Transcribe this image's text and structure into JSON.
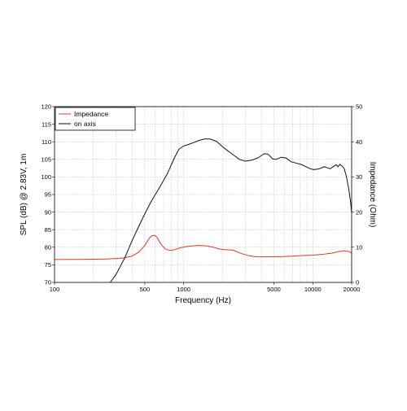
{
  "chart_data": {
    "type": "line",
    "xlabel": "Frequency (Hz)",
    "ylabel": "SPL (dB) @ 2.83V, 1m",
    "y2label": "Impedance (Ohm)",
    "xscale": "log",
    "xlim": [
      100,
      20000
    ],
    "ylim": [
      70,
      120
    ],
    "y2lim": [
      0,
      50
    ],
    "grid": true,
    "legend_position": "top-left",
    "x_ticks": [
      {
        "value": 100,
        "label": "100"
      },
      {
        "value": 500,
        "label": "500"
      },
      {
        "value": 1000,
        "label": "1000"
      },
      {
        "value": 5000,
        "label": "5000"
      },
      {
        "value": 10000,
        "label": "10000"
      },
      {
        "value": 20000,
        "label": "20000"
      }
    ],
    "y_ticks": [
      {
        "value": 70,
        "label": "70"
      },
      {
        "value": 75,
        "label": "75"
      },
      {
        "value": 80,
        "label": "80"
      },
      {
        "value": 85,
        "label": "85"
      },
      {
        "value": 90,
        "label": "90"
      },
      {
        "value": 95,
        "label": "95"
      },
      {
        "value": 100,
        "label": "100"
      },
      {
        "value": 105,
        "label": "105"
      },
      {
        "value": 110,
        "label": "110"
      },
      {
        "value": 115,
        "label": "115"
      },
      {
        "value": 120,
        "label": "120"
      }
    ],
    "y2_ticks": [
      {
        "value": 0,
        "label": "0"
      },
      {
        "value": 10,
        "label": "10"
      },
      {
        "value": 20,
        "label": "20"
      },
      {
        "value": 30,
        "label": "30"
      },
      {
        "value": 40,
        "label": "40"
      },
      {
        "value": 50,
        "label": "50"
      }
    ],
    "series": [
      {
        "name": "Impedance",
        "axis": "right",
        "color": "#d93a2b",
        "points": [
          [
            100,
            6.5
          ],
          [
            150,
            6.55
          ],
          [
            200,
            6.6
          ],
          [
            250,
            6.65
          ],
          [
            300,
            6.8
          ],
          [
            350,
            7.0
          ],
          [
            400,
            7.5
          ],
          [
            450,
            8.6
          ],
          [
            500,
            10.5
          ],
          [
            540,
            12.5
          ],
          [
            570,
            13.3
          ],
          [
            600,
            13.4
          ],
          [
            630,
            12.5
          ],
          [
            670,
            10.8
          ],
          [
            720,
            9.5
          ],
          [
            780,
            9.1
          ],
          [
            850,
            9.3
          ],
          [
            950,
            9.9
          ],
          [
            1100,
            10.3
          ],
          [
            1300,
            10.5
          ],
          [
            1500,
            10.4
          ],
          [
            1700,
            10.0
          ],
          [
            1900,
            9.5
          ],
          [
            2100,
            9.3
          ],
          [
            2400,
            9.2
          ],
          [
            2800,
            8.2
          ],
          [
            3200,
            7.6
          ],
          [
            3600,
            7.3
          ],
          [
            4000,
            7.25
          ],
          [
            5000,
            7.3
          ],
          [
            6000,
            7.35
          ],
          [
            7000,
            7.5
          ],
          [
            8000,
            7.6
          ],
          [
            10000,
            7.75
          ],
          [
            12000,
            8.0
          ],
          [
            14000,
            8.3
          ],
          [
            16000,
            8.8
          ],
          [
            17500,
            9.0
          ],
          [
            19000,
            8.8
          ],
          [
            20000,
            8.3
          ]
        ]
      },
      {
        "name": "on axis",
        "axis": "left",
        "color": "#111111",
        "points": [
          [
            270,
            70.0
          ],
          [
            300,
            72.3
          ],
          [
            350,
            77.0
          ],
          [
            400,
            82.0
          ],
          [
            450,
            86.0
          ],
          [
            500,
            89.5
          ],
          [
            560,
            93.0
          ],
          [
            650,
            97.0
          ],
          [
            750,
            101.0
          ],
          [
            850,
            105.5
          ],
          [
            920,
            107.9
          ],
          [
            1000,
            108.8
          ],
          [
            1100,
            109.3
          ],
          [
            1200,
            109.8
          ],
          [
            1300,
            110.3
          ],
          [
            1450,
            110.8
          ],
          [
            1600,
            110.8
          ],
          [
            1800,
            110.1
          ],
          [
            2000,
            108.6
          ],
          [
            2200,
            107.4
          ],
          [
            2400,
            106.4
          ],
          [
            2700,
            105.0
          ],
          [
            3000,
            104.5
          ],
          [
            3400,
            104.8
          ],
          [
            3800,
            105.5
          ],
          [
            4200,
            106.6
          ],
          [
            4500,
            106.5
          ],
          [
            4900,
            105.1
          ],
          [
            5200,
            105.0
          ],
          [
            5700,
            105.6
          ],
          [
            6200,
            105.4
          ],
          [
            6800,
            104.3
          ],
          [
            7500,
            103.9
          ],
          [
            8200,
            103.5
          ],
          [
            9000,
            102.8
          ],
          [
            9600,
            102.3
          ],
          [
            10200,
            102.1
          ],
          [
            11200,
            102.3
          ],
          [
            12300,
            102.9
          ],
          [
            13000,
            102.6
          ],
          [
            13600,
            102.3
          ],
          [
            14500,
            103.0
          ],
          [
            15200,
            103.5
          ],
          [
            15700,
            102.9
          ],
          [
            16200,
            103.6
          ],
          [
            16800,
            103.1
          ],
          [
            17500,
            102.4
          ],
          [
            18200,
            100.2
          ],
          [
            19000,
            96.5
          ],
          [
            19600,
            93.0
          ],
          [
            20000,
            90.0
          ]
        ]
      }
    ]
  }
}
